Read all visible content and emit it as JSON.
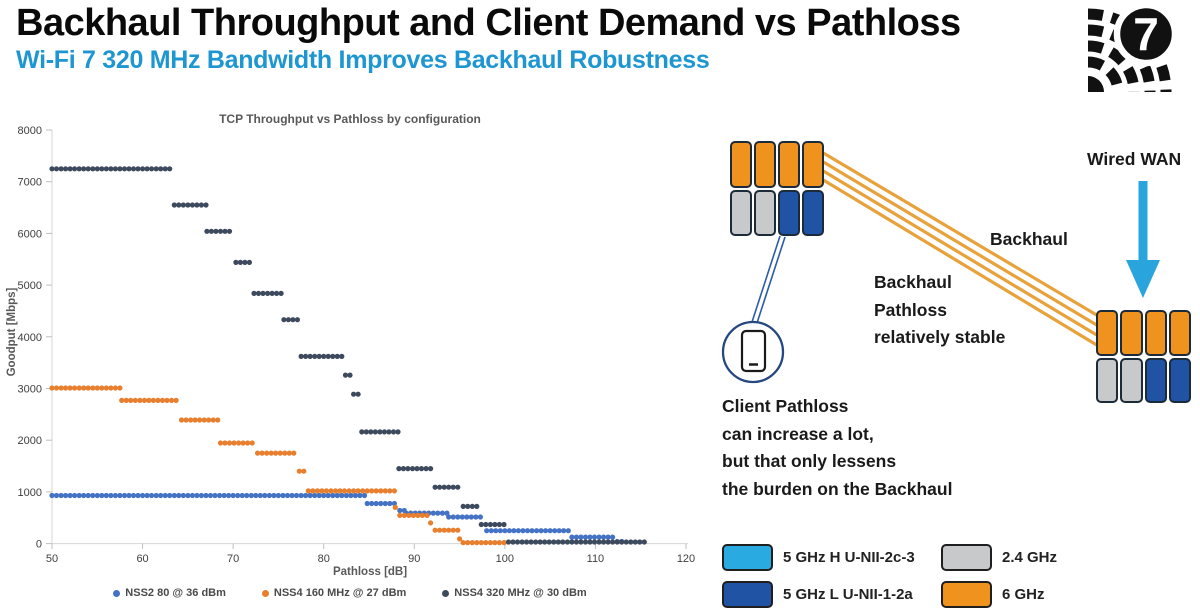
{
  "header": {
    "title": "Backhaul Throughput and Client Demand vs Pathloss",
    "subtitle": "Wi-Fi 7 320 MHz Bandwidth Improves Backhaul Robustness",
    "subtitle_color": "#1e96d2",
    "wifi7_badge": "7"
  },
  "chart_data": {
    "type": "scatter",
    "title": "TCP Throughput vs Pathloss by configuration",
    "xlabel": "Pathloss [dB]",
    "ylabel": "Goodput [Mbps]",
    "xlim": [
      50,
      120
    ],
    "ylim": [
      0,
      8000
    ],
    "x_ticks": [
      50,
      60,
      70,
      80,
      90,
      100,
      110,
      120
    ],
    "y_ticks": [
      0,
      1000,
      2000,
      3000,
      4000,
      5000,
      6000,
      7000,
      8000
    ],
    "grid": false,
    "legend_position": "bottom",
    "point_step_db": 0.5,
    "series": [
      {
        "name": "NSS2 80 @ 36 dBm",
        "color": "#4472c4",
        "segments": [
          [
            930,
            50,
            84.6
          ],
          [
            775,
            84.8,
            88.2
          ],
          [
            640,
            88.4,
            89.0
          ],
          [
            590,
            89.1,
            93.6
          ],
          [
            515,
            93.8,
            97.3
          ],
          [
            250,
            98.0,
            107.2
          ],
          [
            125,
            107.4,
            112.3
          ],
          [
            40,
            112.4,
            113.0
          ]
        ]
      },
      {
        "name": "NSS4 160 MHz @ 27 dBm",
        "color": "#e87f2e",
        "segments": [
          [
            3010,
            50,
            57.5
          ],
          [
            2770,
            57.7,
            64.1
          ],
          [
            2390,
            64.3,
            68.5
          ],
          [
            1945,
            68.6,
            72.5
          ],
          [
            1750,
            72.7,
            77.1
          ],
          [
            1400,
            77.3,
            78.0
          ],
          [
            1020,
            78.3,
            87.8
          ],
          [
            700,
            87.9,
            88.2
          ],
          [
            545,
            88.4,
            91.5
          ],
          [
            400,
            91.8,
            92.1
          ],
          [
            260,
            92.3,
            94.8
          ],
          [
            90,
            95.0,
            95.2
          ],
          [
            20,
            95.4,
            100.3
          ]
        ]
      },
      {
        "name": "NSS4 320 MHz @ 30 dBm",
        "color": "#3d4a5d",
        "segments": [
          [
            7250,
            50,
            63.3
          ],
          [
            6550,
            63.5,
            67.0
          ],
          [
            6040,
            67.1,
            70.0
          ],
          [
            5440,
            70.3,
            72.1
          ],
          [
            4840,
            72.3,
            75.4
          ],
          [
            4330,
            75.6,
            77.2
          ],
          [
            3620,
            77.5,
            82.2
          ],
          [
            3260,
            82.4,
            83.0
          ],
          [
            2890,
            83.3,
            83.9
          ],
          [
            2160,
            84.2,
            88.2
          ],
          [
            1450,
            88.3,
            92.1
          ],
          [
            1090,
            92.3,
            95.2
          ],
          [
            720,
            95.4,
            97.2
          ],
          [
            370,
            97.4,
            100.2
          ],
          [
            30,
            100.4,
            115.5
          ]
        ]
      }
    ]
  },
  "diagram": {
    "wired_wan_label": "Wired WAN",
    "backhaul_label": "Backhaul",
    "backhaul_note_lines": [
      "Backhaul",
      "Pathloss",
      "relatively stable"
    ],
    "client_note_lines": [
      "Client Pathloss",
      "can increase a lot,",
      "but that only lessens",
      "the burden on the Backhaul"
    ],
    "device_cells": {
      "top": [
        "#f0921e",
        "#f0921e",
        "#f0921e",
        "#f0921e"
      ],
      "bottom": [
        "#c8c9ca",
        "#c8c9ca",
        "#2053a4",
        "#2053a4"
      ]
    },
    "band_legend": {
      "col1": [
        {
          "label": "5 GHz H U-NII-2c-3",
          "color": "#29abe2"
        },
        {
          "label": "5 GHz L U-NII-1-2a",
          "color": "#2053a4"
        }
      ],
      "col2": [
        {
          "label": "2.4 GHz",
          "color": "#c8c9ca"
        },
        {
          "label": "6 GHz",
          "color": "#f0921e"
        }
      ]
    },
    "colors": {
      "backhaul_line": "#e8a23c",
      "client_line": "#2b5ca8",
      "arrow": "#2aa4dc"
    }
  }
}
